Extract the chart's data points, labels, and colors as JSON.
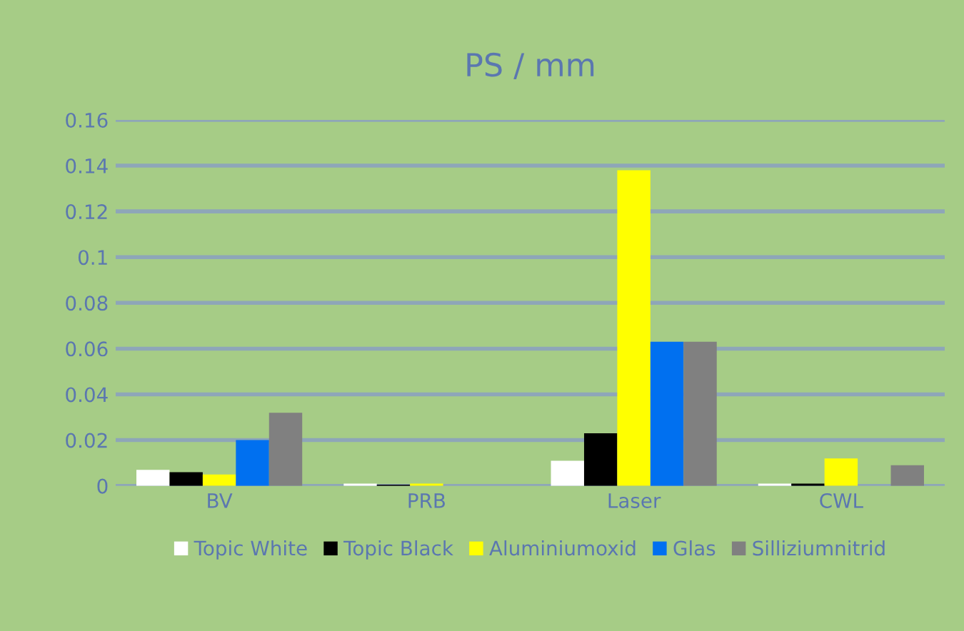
{
  "chart_data": {
    "type": "bar",
    "title": "PS / mm",
    "categories": [
      "BV",
      "PRB",
      "Laser",
      "CWL"
    ],
    "series": [
      {
        "name": "Topic White",
        "color": "#ffffff",
        "values": [
          0.007,
          0.001,
          0.011,
          0.001
        ]
      },
      {
        "name": "Topic Black",
        "color": "#000000",
        "values": [
          0.006,
          0.0005,
          0.023,
          0.001
        ]
      },
      {
        "name": "Aluminiumoxid",
        "color": "#ffff00",
        "values": [
          0.005,
          0.001,
          0.138,
          0.012
        ]
      },
      {
        "name": "Glas",
        "color": "#0070f0",
        "values": [
          0.02,
          0,
          0.063,
          0
        ]
      },
      {
        "name": "Silliziumnitrid",
        "color": "#808080",
        "values": [
          0.032,
          0,
          0.063,
          0.009
        ]
      }
    ],
    "ylim": [
      0,
      0.16
    ],
    "yticks": [
      0,
      0.02,
      0.04,
      0.06,
      0.08,
      0.1,
      0.12,
      0.14,
      0.16
    ],
    "grid": "y",
    "legend": "bottom"
  }
}
